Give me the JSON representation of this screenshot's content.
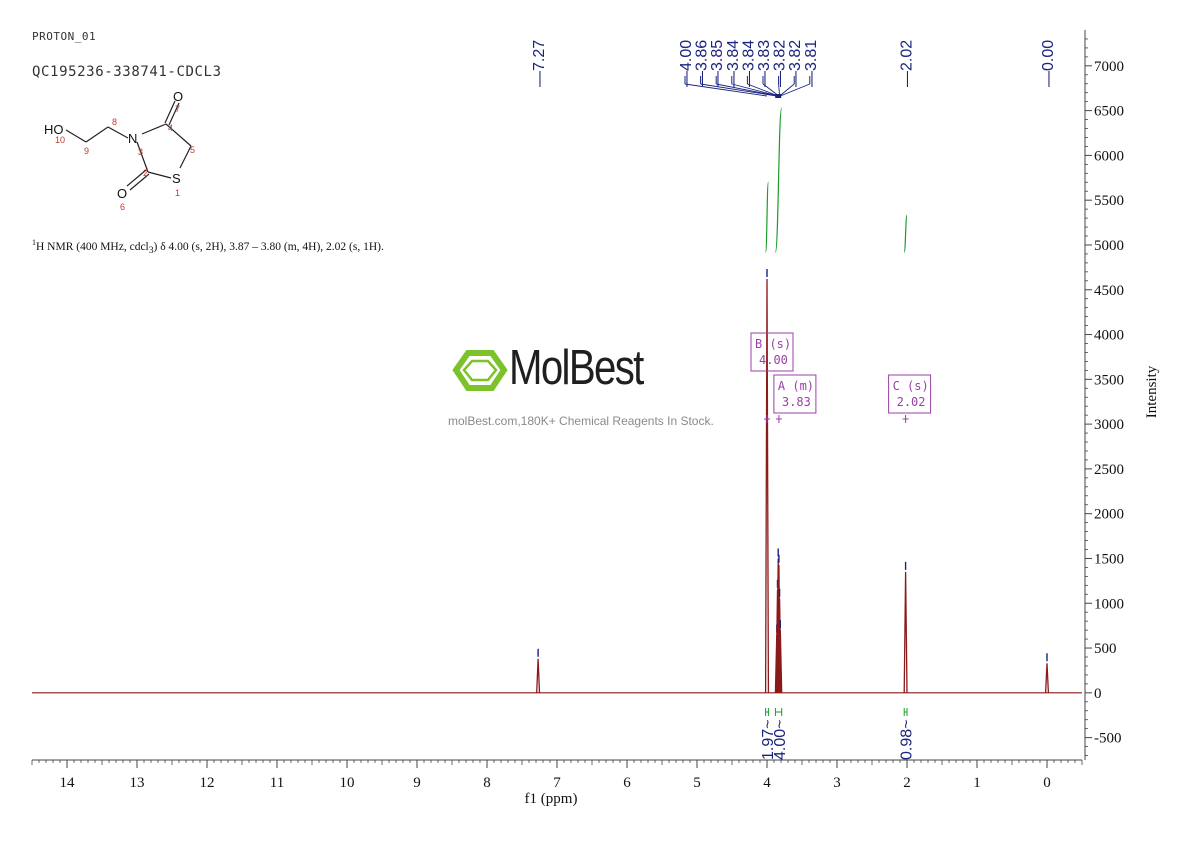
{
  "header": {
    "experiment": "PROTON_01",
    "sample": "QC195236-338741-CDCL3"
  },
  "structure": {
    "oxygen_label": "O",
    "hydroxyl_label": "HO",
    "nitrogen_label": "N",
    "sulfur_label": "S",
    "numbers": [
      "1",
      "2",
      "3",
      "4",
      "5",
      "6",
      "7",
      "8",
      "9",
      "10"
    ]
  },
  "summary": {
    "nucleus_sup": "1",
    "text": "H NMR (400 MHz, cdcl",
    "sub": "3",
    "tail": ") δ 4.00 (s, 2H), 3.87 – 3.80 (m, 4H), 2.02 (s, 1H)."
  },
  "watermark": {
    "brand": "MolBest",
    "tagline": "molBest.com,180K+ Chemical Reagents In Stock."
  },
  "colors": {
    "spectrum": "#8b1a1a",
    "peak_labels": "#1a237e",
    "integral": "#1a9b2a",
    "multiplet_box": "#9b3fa8",
    "axis": "#444444",
    "logo": "#7cc22b"
  },
  "chart_data": {
    "type": "line",
    "xlabel": "f1 (ppm)",
    "ylabel": "Intensity",
    "xlim": [
      14.5,
      -0.5
    ],
    "ylim": [
      -750,
      7400
    ],
    "x_ticks": [
      14,
      13,
      12,
      11,
      10,
      9,
      8,
      7,
      6,
      5,
      4,
      3,
      2,
      1,
      0
    ],
    "y_ticks": [
      -500,
      0,
      500,
      1000,
      1500,
      2000,
      2500,
      3000,
      3500,
      4000,
      4500,
      5000,
      5500,
      6000,
      6500,
      7000
    ],
    "peaks": [
      {
        "ppm": 7.27,
        "intensity": 380
      },
      {
        "ppm": 4.0,
        "intensity": 4620
      },
      {
        "ppm": 3.86,
        "intensity": 650
      },
      {
        "ppm": 3.85,
        "intensity": 1150
      },
      {
        "ppm": 3.84,
        "intensity": 1500
      },
      {
        "ppm": 3.83,
        "intensity": 1430
      },
      {
        "ppm": 3.82,
        "intensity": 1050
      },
      {
        "ppm": 3.81,
        "intensity": 700
      },
      {
        "ppm": 2.02,
        "intensity": 1350
      },
      {
        "ppm": 0.0,
        "intensity": 330
      }
    ],
    "peak_labels": [
      {
        "ppm": 7.27,
        "label": "7.27"
      },
      {
        "ppm": 4.0,
        "label": "4.00"
      },
      {
        "ppm": 3.86,
        "label": "3.86"
      },
      {
        "ppm": 3.85,
        "label": "3.85"
      },
      {
        "ppm": 3.84,
        "label": "3.84"
      },
      {
        "ppm": 3.84,
        "label": "3.84"
      },
      {
        "ppm": 3.83,
        "label": "3.83"
      },
      {
        "ppm": 3.82,
        "label": "3.82"
      },
      {
        "ppm": 3.82,
        "label": "3.82"
      },
      {
        "ppm": 3.81,
        "label": "3.81"
      },
      {
        "ppm": 2.02,
        "label": "2.02"
      },
      {
        "ppm": 0.0,
        "label": "0.00"
      }
    ],
    "multiplets": [
      {
        "letter": "B",
        "type": "(s)",
        "shift": "4.00",
        "ppm": 4.0
      },
      {
        "letter": "A",
        "type": "(m)",
        "shift": "3.83",
        "ppm": 3.83
      },
      {
        "letter": "C",
        "type": "(s)",
        "shift": "2.02",
        "ppm": 2.02
      }
    ],
    "integrals": [
      {
        "ppm": 4.0,
        "value": "1.97",
        "from": 4.02,
        "to": 3.98,
        "y_start": 4920,
        "y_end": 5700
      },
      {
        "ppm": 3.83,
        "value": "4.00",
        "from": 3.88,
        "to": 3.79,
        "y_start": 4920,
        "y_end": 6530
      },
      {
        "ppm": 2.02,
        "value": "0.98",
        "from": 2.04,
        "to": 2.0,
        "y_start": 4920,
        "y_end": 5330
      }
    ]
  }
}
